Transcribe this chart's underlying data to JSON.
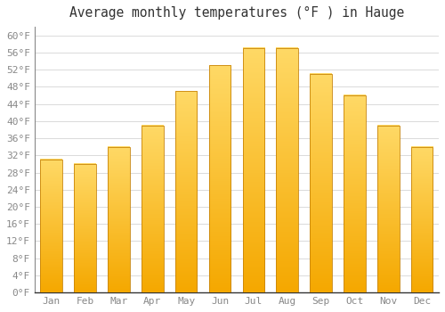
{
  "title": "Average monthly temperatures (°F ) in Hauge",
  "months": [
    "Jan",
    "Feb",
    "Mar",
    "Apr",
    "May",
    "Jun",
    "Jul",
    "Aug",
    "Sep",
    "Oct",
    "Nov",
    "Dec"
  ],
  "values": [
    31,
    30,
    34,
    39,
    47,
    53,
    57,
    57,
    51,
    46,
    39,
    34
  ],
  "bar_color_dark": "#F5A800",
  "bar_color_light": "#FFD966",
  "bar_edge_color": "#C8850A",
  "background_color": "#ffffff",
  "grid_color": "#cccccc",
  "ylim": [
    0,
    62
  ],
  "yticks": [
    0,
    4,
    8,
    12,
    16,
    20,
    24,
    28,
    32,
    36,
    40,
    44,
    48,
    52,
    56,
    60
  ],
  "title_fontsize": 10.5,
  "tick_fontsize": 8,
  "tick_font_color": "#888888",
  "title_color": "#333333",
  "font_family": "monospace"
}
